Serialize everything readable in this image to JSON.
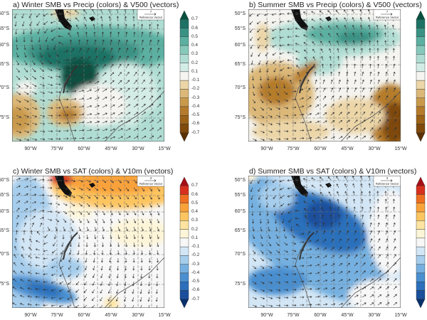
{
  "figure": {
    "panels": [
      {
        "id": "a",
        "title": "a) Winter SMB vs Precip (colors) & V500 (vectors)",
        "colormap": "BrBG",
        "reference_vector": {
          "value": "7",
          "label": "Reference Vector"
        }
      },
      {
        "id": "b",
        "title": "b) Summer SMB vs Precip (colors) & V500 (vectors)",
        "colormap": "BrBG",
        "reference_vector": {
          "value": "7",
          "label": "Reference Vector"
        }
      },
      {
        "id": "c",
        "title": "c) Winter SMB vs SAT (colors) & V10m (vectors)",
        "colormap": "RdBu",
        "reference_vector": {
          "value": "3",
          "label": "Reference Vector"
        }
      },
      {
        "id": "d",
        "title": "d) Summer SMB vs SAT (colors) & V10m (vectors)",
        "colormap": "RdBu",
        "reference_vector": {
          "value": "3",
          "label": "Reference Vector"
        }
      }
    ],
    "lat_labels": [
      "50°S",
      "55°S",
      "60°S",
      "65°S",
      "70°S",
      "75°S"
    ],
    "lon_labels": [
      "90°W",
      "75°W",
      "60°W",
      "45°W",
      "30°W",
      "15°W"
    ],
    "colorbar_labels": [
      "0.7",
      "0.6",
      "0.5",
      "0.4",
      "0.3",
      "0.2",
      "0.1",
      "-0.1",
      "-0.2",
      "-0.3",
      "-0.4",
      "-0.5",
      "-0.6",
      "-0.7"
    ],
    "colormaps": {
      "BrBG": [
        "#5a3005",
        "#7f4a0c",
        "#9b6218",
        "#b57b2c",
        "#c99a4c",
        "#dcb878",
        "#ecd6a8",
        "#f5f4f0",
        "#d4ece6",
        "#b0ddd3",
        "#86c9bb",
        "#5cb0a1",
        "#3a9284",
        "#1e7265",
        "#07503f"
      ],
      "RdBu": [
        "#08306b",
        "#1a4f9c",
        "#2c6fbb",
        "#4a8fd0",
        "#75b0e0",
        "#a6cdec",
        "#d3e6f5",
        "#f7f7f7",
        "#fdf5d8",
        "#fde4a0",
        "#fcc560",
        "#f9a23a",
        "#ef6f21",
        "#d8301e",
        "#a50f15"
      ]
    }
  }
}
